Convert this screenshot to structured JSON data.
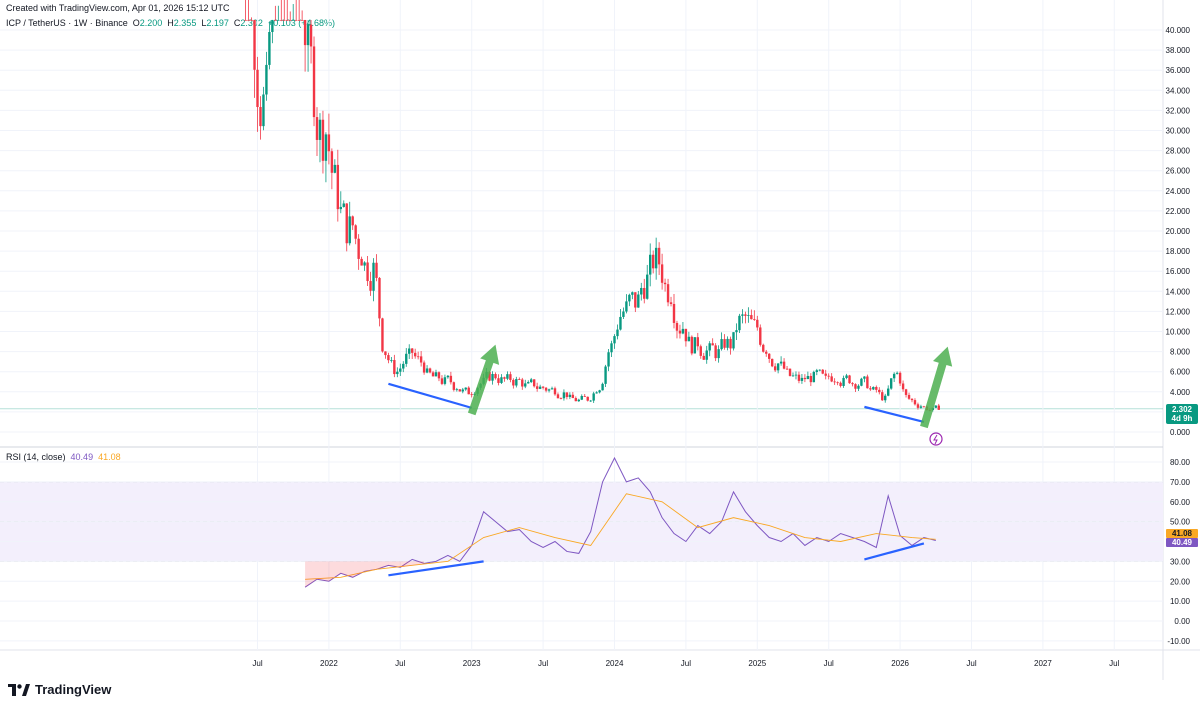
{
  "header": {
    "created": "Created with TradingView.com, Apr 01, 2026 15:12 UTC",
    "symbol": "ICP / TetherUS · 1W · Binance",
    "ohlc": {
      "o": "2.200",
      "h": "2.355",
      "l": "2.197",
      "c": "2.302",
      "chg": "+0.103 (+4.68%)"
    }
  },
  "price_label": {
    "value": "2.302",
    "countdown": "4d 9h"
  },
  "rsi_legend": {
    "name": "RSI (14, close)",
    "rsi": "40.49",
    "ma": "41.08"
  },
  "rsi_labels": {
    "ma": "41.08",
    "rsi": "40.49"
  },
  "brand": "TradingView",
  "colors": {
    "up": "#089981",
    "down": "#f23645",
    "rsi": "#7e57c2",
    "rsi_ma": "#f9a825",
    "band": "#f3effc",
    "divergence": "#2962ff",
    "arrow": "#4caf50",
    "lightning": "#9c27b0"
  },
  "chart_data": [
    {
      "type": "candlestick",
      "title": "ICP / TetherUS · 1W · Binance",
      "y_ticks": [
        "0.000",
        "2.000",
        "4.000",
        "6.000",
        "8.000",
        "10.000",
        "12.000",
        "14.000",
        "16.000",
        "18.000",
        "20.000",
        "22.000",
        "24.000",
        "26.000",
        "28.000",
        "30.000",
        "32.000",
        "34.000",
        "36.000",
        "38.000",
        "40.000"
      ],
      "ylim": [
        -1.2,
        41.5
      ],
      "x_ticks": [
        "Jul",
        "2022",
        "Jul",
        "2023",
        "Jul",
        "2024",
        "Jul",
        "2025",
        "Jul",
        "2026",
        "Jul",
        "2027",
        "Jul"
      ],
      "x_tick_dates": [
        "2021-07",
        "2022-01",
        "2022-07",
        "2023-01",
        "2023-07",
        "2024-01",
        "2024-07",
        "2025-01",
        "2025-07",
        "2026-01",
        "2026-07",
        "2027-01",
        "2027-07"
      ],
      "series": [
        {
          "name": "ICP / TetherUS",
          "x": [
            "2021-05",
            "2021-06",
            "2021-07",
            "2021-08",
            "2021-09",
            "2021-10",
            "2021-11",
            "2021-12",
            "2022-01",
            "2022-02",
            "2022-03",
            "2022-04",
            "2022-05",
            "2022-06",
            "2022-07",
            "2022-08",
            "2022-09",
            "2022-10",
            "2022-11",
            "2022-12",
            "2023-01",
            "2023-02",
            "2023-03",
            "2023-04",
            "2023-05",
            "2023-06",
            "2023-07",
            "2023-08",
            "2023-09",
            "2023-10",
            "2023-11",
            "2023-12",
            "2024-01",
            "2024-02",
            "2024-03",
            "2024-04",
            "2024-05",
            "2024-06",
            "2024-07",
            "2024-08",
            "2024-09",
            "2024-10",
            "2024-11",
            "2024-12",
            "2025-01",
            "2025-02",
            "2025-03",
            "2025-04",
            "2025-05",
            "2025-06",
            "2025-07",
            "2025-08",
            "2025-09",
            "2025-10",
            "2025-11",
            "2025-12",
            "2026-01",
            "2026-02",
            "2026-03",
            "2026-04"
          ],
          "close": [
            60,
            40,
            33,
            48,
            45,
            45,
            35,
            30,
            24,
            20,
            18,
            16,
            8,
            6,
            7.5,
            7,
            5.5,
            5,
            4.5,
            4,
            4.8,
            5.5,
            5.2,
            5,
            4.6,
            4.4,
            4.2,
            3.8,
            3.2,
            3.3,
            4.5,
            8.5,
            12,
            13,
            15,
            17,
            14,
            10.5,
            8.5,
            8,
            7.8,
            8.8,
            11.2,
            10.5,
            8.4,
            6.8,
            5.6,
            5.1,
            5.4,
            5.2,
            5.5,
            5.3,
            4.9,
            4.1,
            3.3,
            5.8,
            3.3,
            2.6,
            2.2,
            2.302
          ]
        }
      ],
      "annotations": [
        {
          "type": "divergence-line",
          "from": [
            "2022-06",
            4.8
          ],
          "to": [
            "2023-01",
            2.4
          ]
        },
        {
          "type": "arrow-up",
          "from": [
            "2023-01",
            1.8
          ],
          "to": [
            "2023-03",
            8.7
          ]
        },
        {
          "type": "divergence-line",
          "from": [
            "2025-10",
            2.5
          ],
          "to": [
            "2026-03",
            1.0
          ]
        },
        {
          "type": "arrow-up",
          "from": [
            "2026-03",
            0.5
          ],
          "to": [
            "2026-05",
            8.5
          ]
        }
      ]
    },
    {
      "type": "line",
      "title": "RSI (14, close)",
      "y_ticks": [
        "-10.00",
        "0.00",
        "10.00",
        "20.00",
        "30.00",
        "40.00",
        "50.00",
        "60.00",
        "70.00",
        "80.00"
      ],
      "ylim": [
        -14,
        88
      ],
      "bands": [
        30,
        50,
        70
      ],
      "series": [
        {
          "name": "RSI",
          "x": [
            "2021-11",
            "2021-12",
            "2022-01",
            "2022-02",
            "2022-03",
            "2022-04",
            "2022-05",
            "2022-06",
            "2022-07",
            "2022-08",
            "2022-09",
            "2022-10",
            "2022-11",
            "2022-12",
            "2023-01",
            "2023-02",
            "2023-03",
            "2023-04",
            "2023-05",
            "2023-06",
            "2023-07",
            "2023-08",
            "2023-09",
            "2023-10",
            "2023-11",
            "2023-12",
            "2024-01",
            "2024-02",
            "2024-03",
            "2024-04",
            "2024-05",
            "2024-06",
            "2024-07",
            "2024-08",
            "2024-09",
            "2024-10",
            "2024-11",
            "2024-12",
            "2025-01",
            "2025-02",
            "2025-03",
            "2025-04",
            "2025-05",
            "2025-06",
            "2025-07",
            "2025-08",
            "2025-09",
            "2025-10",
            "2025-11",
            "2025-12",
            "2026-01",
            "2026-02",
            "2026-03",
            "2026-04"
          ],
          "values": [
            17,
            21,
            20,
            24,
            22,
            25,
            26,
            28,
            27,
            31,
            29,
            30,
            33,
            30,
            38,
            55,
            50,
            45,
            46,
            40,
            37,
            40,
            35,
            34,
            45,
            70,
            82,
            70,
            72,
            65,
            52,
            44,
            40,
            48,
            44,
            50,
            65,
            55,
            48,
            42,
            40,
            44,
            38,
            42,
            40,
            44,
            42,
            40,
            37,
            63,
            43,
            38,
            42,
            40.49
          ]
        },
        {
          "name": "RSI-based MA",
          "x": [
            "2021-11",
            "2022-02",
            "2022-05",
            "2022-08",
            "2022-11",
            "2023-02",
            "2023-05",
            "2023-08",
            "2023-11",
            "2024-02",
            "2024-05",
            "2024-08",
            "2024-11",
            "2025-02",
            "2025-05",
            "2025-08",
            "2025-11",
            "2026-02",
            "2026-04"
          ],
          "values": [
            21,
            22,
            26,
            28,
            30,
            42,
            47,
            42,
            38,
            64,
            60,
            47,
            52,
            48,
            42,
            40,
            44,
            42,
            41.08
          ]
        }
      ],
      "annotations": [
        {
          "type": "divergence-line",
          "from": [
            "2022-06",
            23
          ],
          "to": [
            "2023-02",
            30
          ]
        },
        {
          "type": "divergence-line",
          "from": [
            "2025-10",
            31
          ],
          "to": [
            "2026-03",
            39
          ]
        }
      ]
    }
  ]
}
